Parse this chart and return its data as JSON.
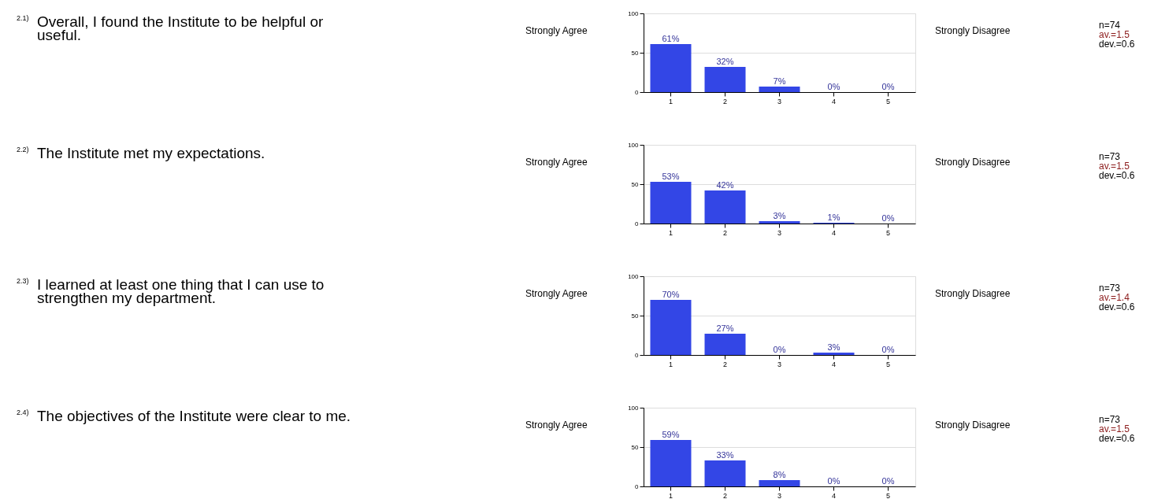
{
  "chart_data": [
    {
      "type": "bar",
      "annotations": [
        "2.1)",
        "Strongly Agree",
        "Strongly Disagree",
        "n=74",
        "av.=1.5",
        "dev.=0.6",
        "Overall, I found the Institute to be helpful or useful."
      ],
      "categories": [
        "1",
        "2",
        "3",
        "4",
        "5"
      ],
      "values": [
        61,
        32,
        7,
        0,
        0
      ],
      "value_labels": [
        "61%",
        "32%",
        "7%",
        "0%",
        "0%"
      ],
      "color": "#3346e6",
      "ylim": [
        0,
        100
      ],
      "yticks": [
        0,
        50,
        100
      ],
      "grid": "y"
    },
    {
      "type": "bar",
      "annotations": [
        "2.2)",
        "Strongly Agree",
        "Strongly Disagree",
        "n=73",
        "av.=1.5",
        "dev.=0.6",
        "The Institute met my expectations."
      ],
      "categories": [
        "1",
        "2",
        "3",
        "4",
        "5"
      ],
      "values": [
        53,
        42,
        3,
        1,
        0
      ],
      "value_labels": [
        "53%",
        "42%",
        "3%",
        "1%",
        "0%"
      ],
      "color": "#3346e6",
      "ylim": [
        0,
        100
      ],
      "yticks": [
        0,
        50,
        100
      ],
      "grid": "y"
    },
    {
      "type": "bar",
      "annotations": [
        "2.3)",
        "Strongly Agree",
        "Strongly Disagree",
        "n=73",
        "av.=1.4",
        "dev.=0.6",
        "I learned at least one thing that I can use to strengthen my department."
      ],
      "categories": [
        "1",
        "2",
        "3",
        "4",
        "5"
      ],
      "values": [
        70,
        27,
        0,
        3,
        0
      ],
      "value_labels": [
        "70%",
        "27%",
        "0%",
        "3%",
        "0%"
      ],
      "color": "#3346e6",
      "ylim": [
        0,
        100
      ],
      "yticks": [
        0,
        50,
        100
      ],
      "grid": "y"
    },
    {
      "type": "bar",
      "annotations": [
        "2.4)",
        "Strongly Agree",
        "Strongly Disagree",
        "n=73",
        "av.=1.5",
        "dev.=0.6",
        "The objectives of the Institute were clear to me."
      ],
      "categories": [
        "1",
        "2",
        "3",
        "4",
        "5"
      ],
      "values": [
        59,
        33,
        8,
        0,
        0
      ],
      "value_labels": [
        "59%",
        "33%",
        "8%",
        "0%",
        "0%"
      ],
      "color": "#3346e6",
      "ylim": [
        0,
        100
      ],
      "yticks": [
        0,
        50,
        100
      ],
      "grid": "y"
    }
  ]
}
